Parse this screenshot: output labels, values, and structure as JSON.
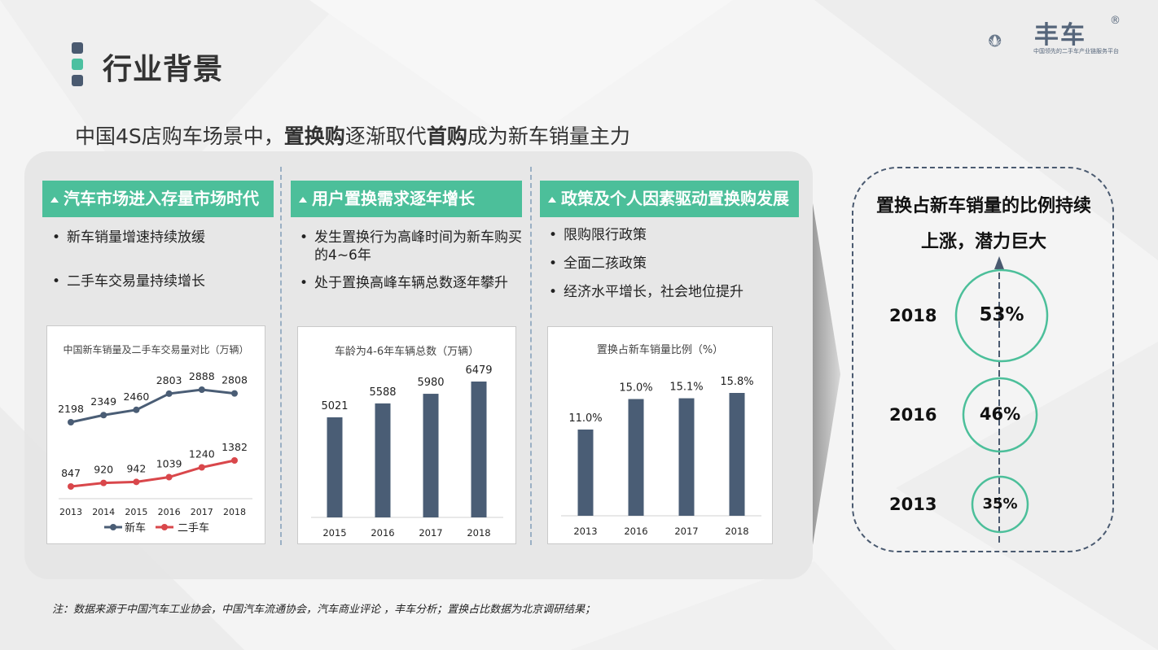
{
  "header": {
    "title": "行业背景",
    "logo_name": "丰车",
    "logo_reg": "®",
    "logo_tagline": "中国领先的二手车产业链服务平台"
  },
  "headline": {
    "part1": "中国4S店购车场景中，",
    "bold1": "置换购",
    "part2": "逐渐取代",
    "bold2": "首购",
    "part3": "成为新车销量主力"
  },
  "sections": [
    {
      "heading": "汽车市场进入存量市场时代",
      "bullets": [
        "新车销量增速持续放缓",
        "二手车交易量持续增长"
      ]
    },
    {
      "heading": "用户置换需求逐年增长",
      "bullets": [
        "发生置换行为高峰时间为新车购买的4~6年",
        "处于置换高峰车辆总数逐年攀升"
      ]
    },
    {
      "heading": "政策及个人因素驱动置换购发展",
      "bullets": [
        "限购限行政策",
        "全面二孩政策",
        "经济水平增长，社会地位提升"
      ]
    }
  ],
  "right_panel": {
    "title_line1": "置换占新车销量的比例持续",
    "title_line2": "上涨，潜力巨大",
    "rows": [
      {
        "year": "2018",
        "value": "53%"
      },
      {
        "year": "2016",
        "value": "46%"
      },
      {
        "year": "2013",
        "value": "35%"
      }
    ]
  },
  "note": "注：数据来源于中国汽车工业协会，中国汽车流通协会，汽车商业评论 ，丰车分析；置换占比数据为北京调研结果；",
  "colors": {
    "accent_green": "#4cbf9a",
    "bar_navy": "#4a5d75",
    "line_navy": "#4a5d75",
    "line_red": "#d9474b"
  },
  "chart_data": [
    {
      "type": "line",
      "title": "中国新车销量及二手车交易量对比（万辆）",
      "categories": [
        "2013",
        "2014",
        "2015",
        "2016",
        "2017",
        "2018"
      ],
      "series": [
        {
          "name": "新车",
          "values": [
            2198,
            2349,
            2460,
            2803,
            2888,
            2808
          ],
          "labels": [
            "2198",
            "2349",
            "2460",
            "2803",
            "2888",
            "2808"
          ]
        },
        {
          "name": "二手车",
          "values": [
            847,
            920,
            942,
            1039,
            1240,
            1382
          ],
          "labels": [
            "847",
            "920",
            "942",
            "1039",
            "1240",
            "1382"
          ]
        }
      ],
      "legend": "bottom"
    },
    {
      "type": "bar",
      "title": "车龄为4-6年车辆总数（万辆）",
      "categories": [
        "2015",
        "2016",
        "2017",
        "2018"
      ],
      "values": [
        5021,
        5588,
        5980,
        6479
      ],
      "labels": [
        "5021",
        "5588",
        "5980",
        "6479"
      ]
    },
    {
      "type": "bar",
      "title": "置换占新车销量比例（%）",
      "categories": [
        "2013",
        "2016",
        "2017",
        "2018"
      ],
      "values": [
        11.0,
        15.0,
        15.1,
        15.8
      ],
      "labels": [
        "11.0%",
        "15.0%",
        "15.1%",
        "15.8%"
      ]
    }
  ]
}
